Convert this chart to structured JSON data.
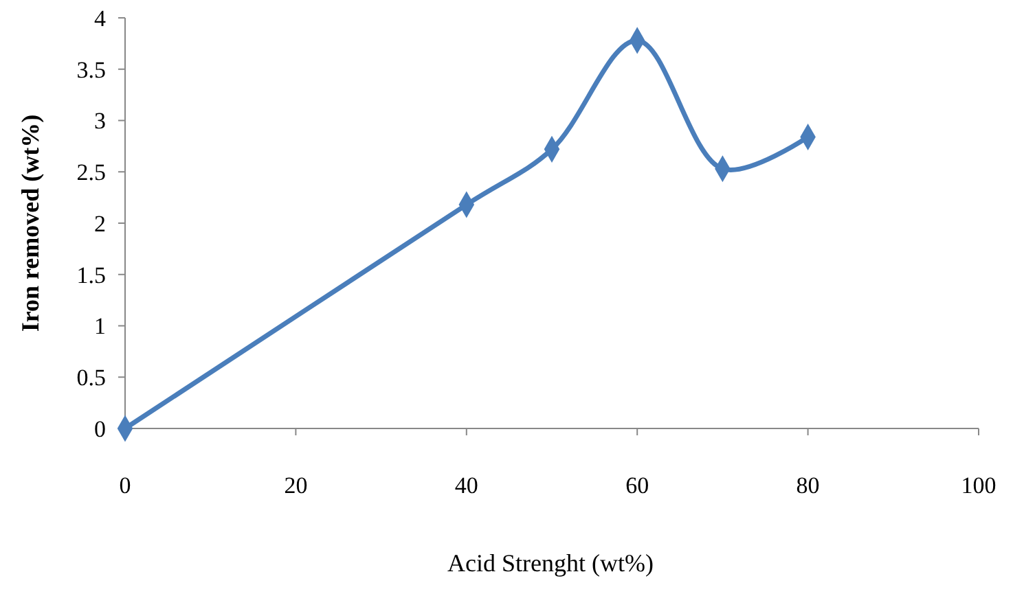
{
  "chart_data": {
    "type": "line",
    "xlabel": "Acid Strenght (wt%)",
    "ylabel": "Iron removed (wt%)",
    "x": [
      0,
      40,
      50,
      60,
      70,
      80
    ],
    "series": [
      {
        "color": "#4a7ebb",
        "values": [
          0,
          2.18,
          2.72,
          3.78,
          2.53,
          2.84
        ]
      }
    ],
    "xlim": [
      0,
      100
    ],
    "xticks": [
      0,
      20,
      40,
      60,
      80,
      100
    ],
    "ylim": [
      0,
      4
    ],
    "yticks": [
      0,
      0.5,
      1,
      1.5,
      2,
      2.5,
      3,
      3.5,
      4
    ],
    "grid": false,
    "marker": "diamond",
    "line_style": "solid"
  }
}
